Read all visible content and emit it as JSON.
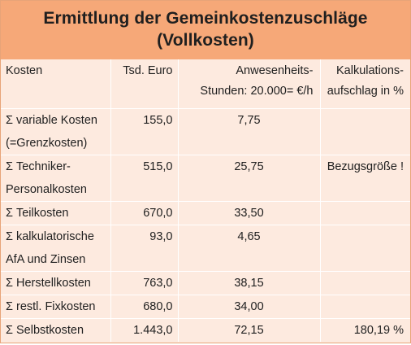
{
  "title": {
    "line1": "Ermittlung der Gemeinkostenzuschläge",
    "line2": "(Vollkosten)"
  },
  "header": {
    "col1": "Kosten",
    "col2": "Tsd. Euro",
    "col3_line1": "Anwesenheits-",
    "col3_line2": "Stunden: 20.000= €/h",
    "col4_line1": "Kalkulations-",
    "col4_line2": "aufschlag in %"
  },
  "rows": [
    {
      "label_line1": "Σ variable Kosten",
      "label_line2": "(=Grenzkosten)",
      "tsd_euro": "155,0",
      "per_hour": "7,75",
      "surcharge": ""
    },
    {
      "label_line1": "Σ Techniker-",
      "label_line2": "Personalkosten",
      "tsd_euro": "515,0",
      "per_hour": "25,75",
      "surcharge": "Bezugsgröße !"
    },
    {
      "label_line1": "Σ Teilkosten",
      "label_line2": "",
      "tsd_euro": "670,0",
      "per_hour": "33,50",
      "surcharge": ""
    },
    {
      "label_line1": "Σ kalkulatorische",
      "label_line2": "AfA und Zinsen",
      "tsd_euro": "93,0",
      "per_hour": "4,65",
      "surcharge": ""
    },
    {
      "label_line1": "Σ Herstellkosten",
      "label_line2": "",
      "tsd_euro": "763,0",
      "per_hour": "38,15",
      "surcharge": ""
    },
    {
      "label_line1": "Σ restl. Fixkosten",
      "label_line2": "",
      "tsd_euro": "680,0",
      "per_hour": "34,00",
      "surcharge": ""
    },
    {
      "label_line1": "Σ Selbstkosten",
      "label_line2": "",
      "tsd_euro": "1.443,0",
      "per_hour": "72,15",
      "surcharge": "180,19 %"
    }
  ]
}
